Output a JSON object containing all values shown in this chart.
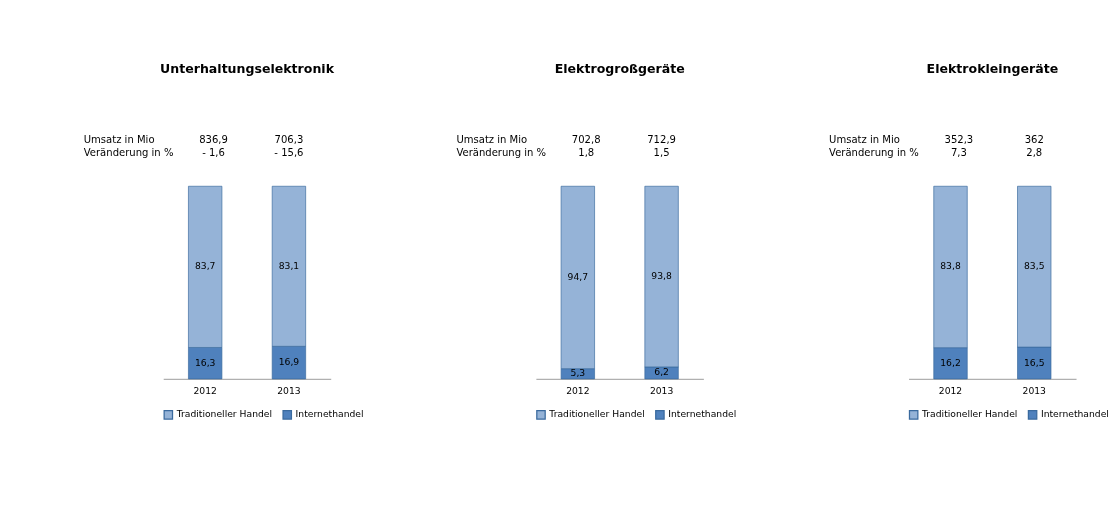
{
  "chart_data": [
    {
      "type": "bar",
      "title": "Unterhaltungselektronik",
      "categories": [
        "2012",
        "2013"
      ],
      "stacked": true,
      "legend": "bottom",
      "annotations": [
        "Umsatz in Mio",
        "836,9",
        "706,3",
        "Veränderung in %",
        "- 1,6",
        "- 15,6"
      ],
      "series": [
        {
          "name": "Internethandel",
          "color": "#4f81bd",
          "values": [
            16.3,
            16.9
          ],
          "value_labels": [
            "16,3",
            "16,9"
          ]
        },
        {
          "name": "Traditioneller Handel",
          "color": "#95b3d7",
          "values": [
            83.7,
            83.1
          ],
          "value_labels": [
            "83,7",
            "83,1"
          ]
        }
      ]
    },
    {
      "type": "bar",
      "title": "Elektrogroßgeräte",
      "categories": [
        "2012",
        "2013"
      ],
      "stacked": true,
      "legend": "bottom",
      "annotations": [
        "Umsatz in Mio",
        "702,8",
        "712,9",
        "Veränderung in %",
        "1,8",
        "1,5"
      ],
      "series": [
        {
          "name": "Internethandel",
          "color": "#4f81bd",
          "values": [
            5.3,
            6.2
          ],
          "value_labels": [
            "5,3",
            "6,2"
          ]
        },
        {
          "name": "Traditioneller Handel",
          "color": "#95b3d7",
          "values": [
            94.7,
            93.8
          ],
          "value_labels": [
            "94,7",
            "93,8"
          ]
        }
      ]
    },
    {
      "type": "bar",
      "title": "Elektrokleingeräte",
      "categories": [
        "2012",
        "2013"
      ],
      "stacked": true,
      "legend": "bottom",
      "annotations": [
        "Umsatz in Mio",
        "352,3",
        "362",
        "Veränderung in %",
        "7,3",
        "2,8"
      ],
      "series": [
        {
          "name": "Internethandel",
          "color": "#4f81bd",
          "values": [
            16.2,
            16.5
          ],
          "value_labels": [
            "16,2",
            "16,5"
          ]
        },
        {
          "name": "Traditioneller Handel",
          "color": "#95b3d7",
          "values": [
            83.8,
            83.5
          ],
          "value_labels": [
            "83,8",
            "83,5"
          ]
        }
      ]
    }
  ]
}
